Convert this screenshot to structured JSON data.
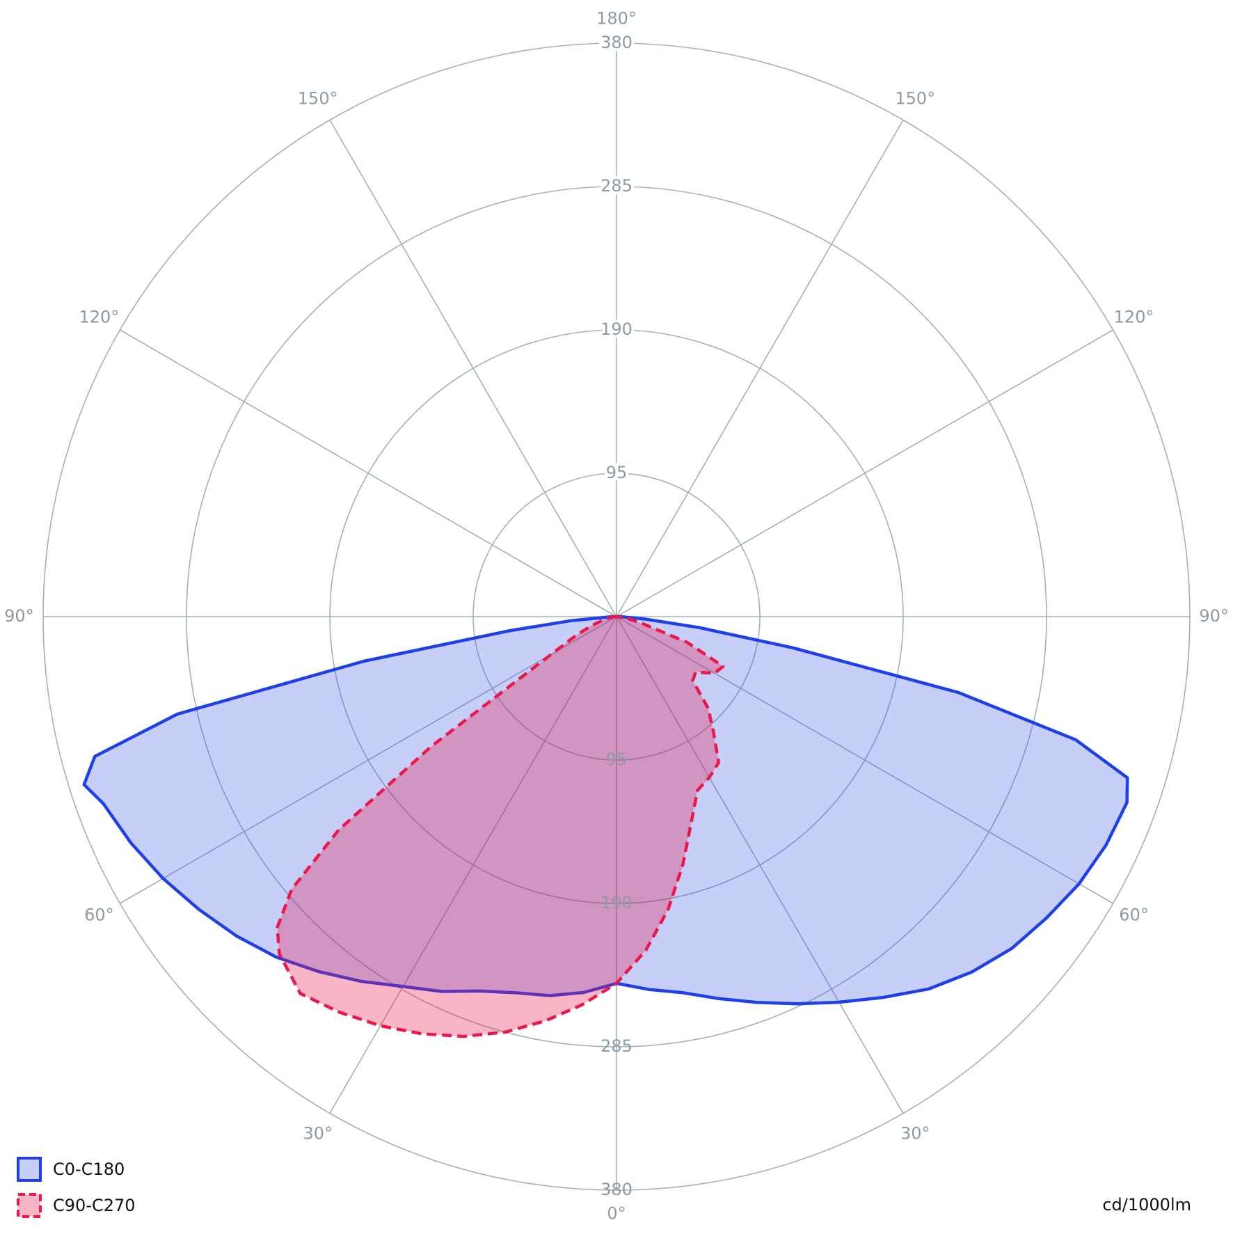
{
  "chart_data": {
    "type": "polar",
    "unit_label": "cd/1000lm",
    "rlim": [
      0,
      380
    ],
    "rticks": [
      95,
      190,
      285,
      380
    ],
    "angleticks": [
      {
        "value": 0,
        "label": "0°"
      },
      {
        "value": 30,
        "label": "30°"
      },
      {
        "value": 60,
        "label": "60°"
      },
      {
        "value": 90,
        "label": "90°"
      },
      {
        "value": 120,
        "label": "120°"
      },
      {
        "value": 150,
        "label": "150°"
      },
      {
        "value": 180,
        "label": "180°"
      }
    ],
    "grid": true,
    "legend": "bottom-left",
    "series": [
      {
        "name": "C0-C180",
        "color": "#1f3fe8",
        "dashed": false,
        "x": [
          -90,
          -85,
          -82.5,
          -80,
          -77.5,
          -75,
          -72.5,
          -70,
          -65,
          -60,
          -55,
          -50,
          -45,
          -40,
          -35,
          -30,
          -25,
          -20,
          -15,
          -10,
          -5,
          0,
          5,
          10,
          15,
          20,
          25,
          30,
          35,
          40,
          45,
          50,
          55,
          60,
          65,
          70,
          72.5,
          75,
          77.5,
          80,
          82.5,
          85,
          90
        ],
        "values": [
          3,
          30,
          72,
          170,
          298,
          358,
          370,
          362,
          355,
          347,
          338,
          329,
          319,
          307,
          295,
          283,
          274,
          264,
          258,
          255,
          250,
          243,
          248,
          253,
          262,
          272,
          283,
          295,
          308,
          322,
          333,
          342,
          348,
          354,
          358,
          360,
          355,
          315,
          232,
          118,
          55,
          20,
          3
        ]
      },
      {
        "name": "C90-C270",
        "color": "#e8194a",
        "dashed": true,
        "x": [
          -90,
          -85,
          -80,
          -75,
          -70,
          -65,
          -60,
          -57.5,
          -55,
          -52.5,
          -50,
          -47.5,
          -45,
          -40,
          -35,
          -30,
          -25,
          -20,
          -15,
          -10,
          -5,
          0,
          5,
          10,
          15,
          20,
          25,
          30,
          35,
          40,
          45,
          50,
          55,
          60,
          65,
          70,
          75,
          80,
          85,
          90
        ],
        "values": [
          0,
          2,
          5,
          10,
          18,
          30,
          50,
          75,
          150,
          232,
          281,
          305,
          316,
          326,
          320,
          313,
          305,
          296,
          285,
          272,
          258,
          243,
          222,
          197,
          170,
          145,
          127,
          123,
          118,
          100,
          86,
          66,
          64,
          75,
          78,
          50,
          18,
          8,
          3,
          0
        ]
      }
    ]
  }
}
